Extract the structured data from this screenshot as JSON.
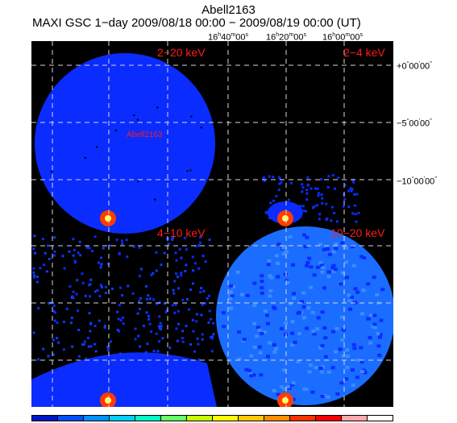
{
  "header": {
    "title": "Abell2163",
    "subtitle": "MAXI GSC 1−day 2009/08/18 00:00 − 2009/08/19 00:00 (UT)"
  },
  "ra_ticks": [
    {
      "h": "16",
      "m": "40",
      "s": "00"
    },
    {
      "h": "16",
      "m": "20",
      "s": "00"
    },
    {
      "h": "16",
      "m": "00",
      "s": "00"
    }
  ],
  "dec_ticks": [
    {
      "sign": "+",
      "d": "0",
      "m": "00",
      "s": "00"
    },
    {
      "sign": "−",
      "d": "5",
      "m": "00",
      "s": "00"
    },
    {
      "sign": "−",
      "d": "10",
      "m": "00",
      "s": "00"
    }
  ],
  "panels": {
    "top_left": "2−20 keV",
    "top_right": "2−4 keV",
    "bottom_left": "4−10 keV",
    "bottom_right": "10−20 keV"
  },
  "source_label": "Abell2163",
  "colors": {
    "background": "#000000",
    "sky_primary": "#0a2cff",
    "sky_secondary": "#1a6dff",
    "grid": "#d8d8d8",
    "hot": "#ff3b00",
    "label": "#ff1a1a"
  },
  "colorbar": [
    "#0014c8",
    "#0050ff",
    "#0090ff",
    "#00d0ff",
    "#00ffc8",
    "#64ff64",
    "#c8ff00",
    "#ffff00",
    "#ffc800",
    "#ff8c00",
    "#ff3200",
    "#ff0000",
    "#ffaaaa",
    "#ffffff"
  ]
}
